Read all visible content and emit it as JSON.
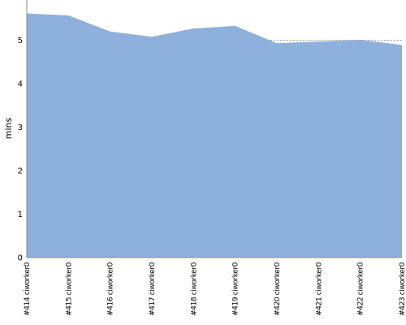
{
  "chart_data": {
    "type": "area",
    "ylabel": "mins",
    "xlabel": "",
    "ylim": [
      0,
      5.9
    ],
    "yticks": [
      0,
      1,
      2,
      3,
      4,
      5
    ],
    "grid": true,
    "categories": [
      "#414 ciworker0",
      "#415 ciworker0",
      "#416 ciworker0",
      "#417 ciworker0",
      "#418 ciworker0",
      "#419 ciworker0",
      "#420 ciworker0",
      "#421 ciworker0",
      "#422 ciworker0",
      "#423 ciworker0"
    ],
    "x": [
      0,
      0.3,
      1,
      2,
      3,
      4,
      5,
      6,
      7,
      8,
      9
    ],
    "values": [
      5.62,
      5.6,
      5.57,
      5.2,
      5.08,
      5.27,
      5.33,
      4.93,
      4.97,
      5.01,
      4.89
    ],
    "fill_color": "#8eb0dc",
    "grid_color": "#7f7f7f",
    "axis_color": "#888888"
  }
}
